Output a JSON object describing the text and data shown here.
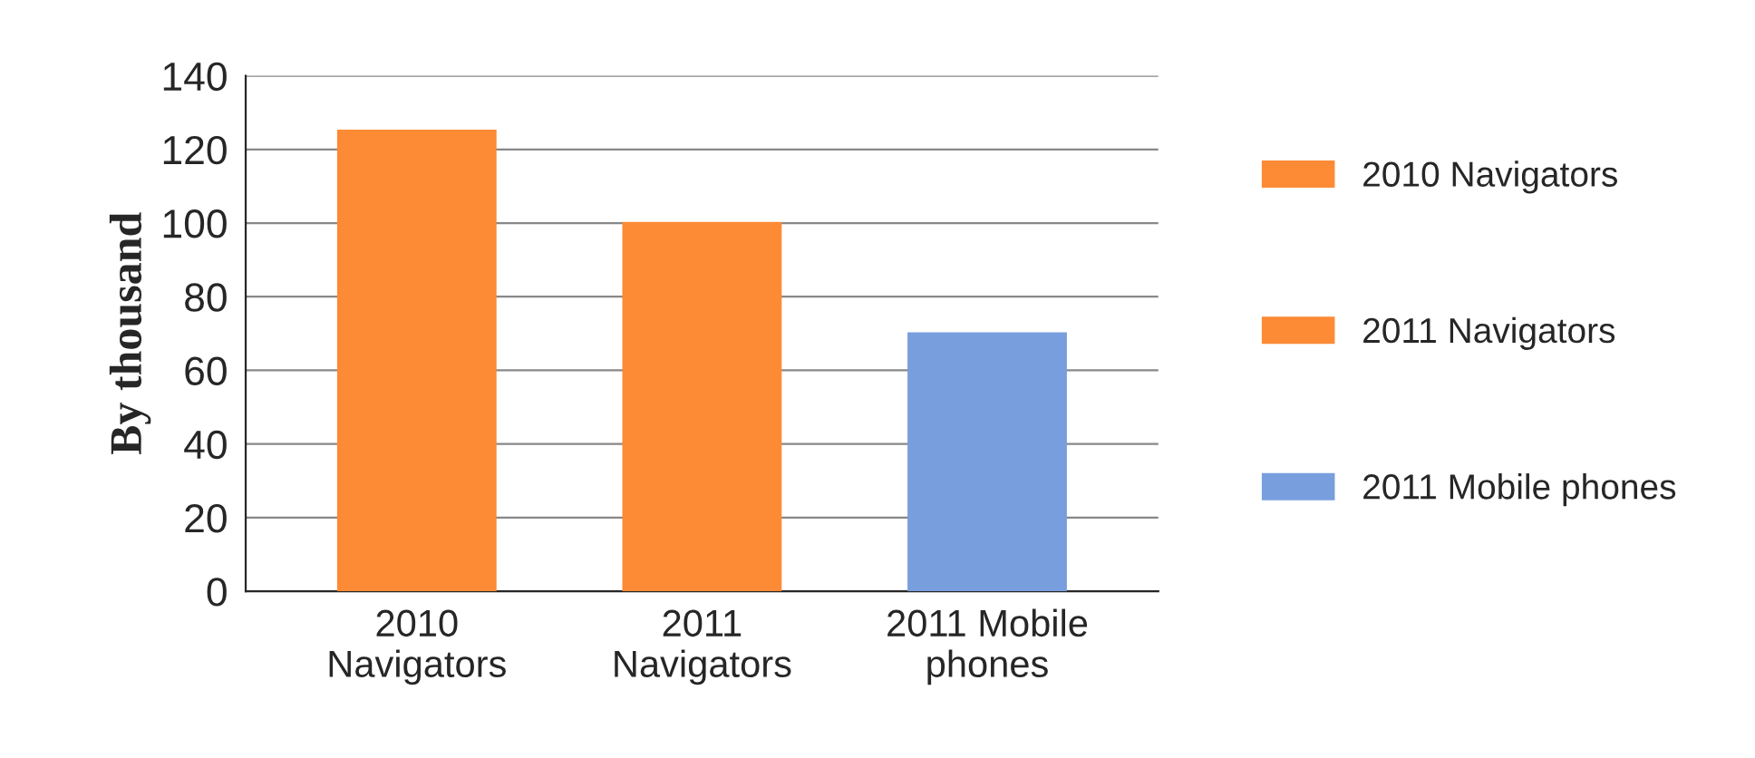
{
  "chart_data": {
    "type": "bar",
    "ylabel": "By thousand",
    "categories": [
      "2010 Navigators",
      "2011 Navigators",
      "2011 Mobile phones"
    ],
    "series": [
      {
        "name": "2010 Navigators",
        "color": "#fd8a35",
        "values": [
          125,
          null,
          null
        ]
      },
      {
        "name": "2011 Navigators",
        "color": "#fd8a35",
        "values": [
          null,
          100,
          null
        ]
      },
      {
        "name": "2011 Mobile phones",
        "color": "#789edd",
        "values": [
          null,
          null,
          70
        ]
      }
    ],
    "ylim": [
      0,
      140
    ],
    "yticks": [
      0,
      20,
      40,
      60,
      80,
      100,
      120,
      140
    ],
    "grid": "y",
    "legend": "right"
  }
}
